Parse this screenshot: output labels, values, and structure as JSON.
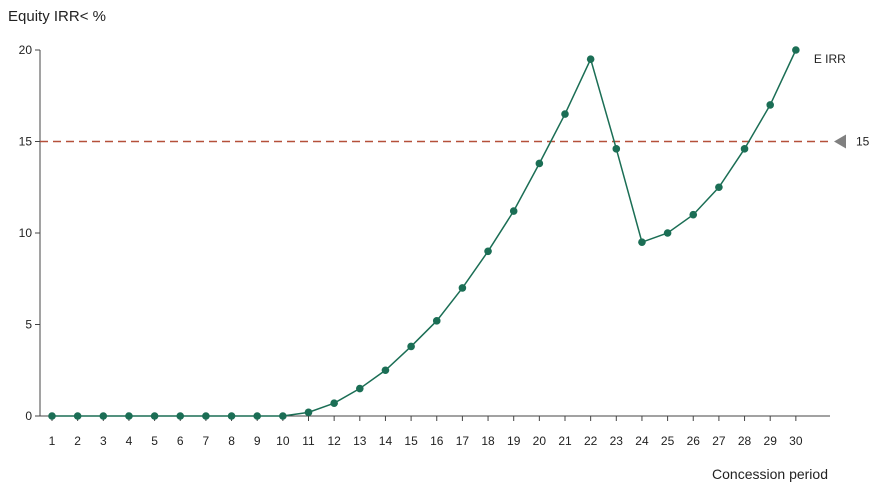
{
  "chart_data": {
    "type": "line",
    "ylabel": "Equity IRR< %",
    "xlabel": "Concession period",
    "x": [
      1,
      2,
      3,
      4,
      5,
      6,
      7,
      8,
      9,
      10,
      11,
      12,
      13,
      14,
      15,
      16,
      17,
      18,
      19,
      20,
      21,
      22,
      23,
      24,
      25,
      26,
      27,
      28,
      29,
      30
    ],
    "series": [
      {
        "name": "E IRR",
        "values": [
          0,
          0,
          0,
          0,
          0,
          0,
          0,
          0,
          0,
          0,
          0.2,
          0.7,
          1.5,
          2.5,
          3.8,
          5.2,
          7.0,
          9.0,
          11.2,
          13.8,
          16.5,
          19.5,
          14.6,
          9.5,
          10.0,
          11.0,
          12.5,
          14.6,
          17.0,
          20.0
        ]
      }
    ],
    "ylim": [
      0,
      20
    ],
    "yticks": [
      0,
      5,
      10,
      15,
      20
    ],
    "reference_line": {
      "value": 15,
      "label": "15"
    },
    "grid": false,
    "colors": {
      "series": "#1b6e55",
      "reference": "#b5503a",
      "marker": "#808080"
    }
  }
}
